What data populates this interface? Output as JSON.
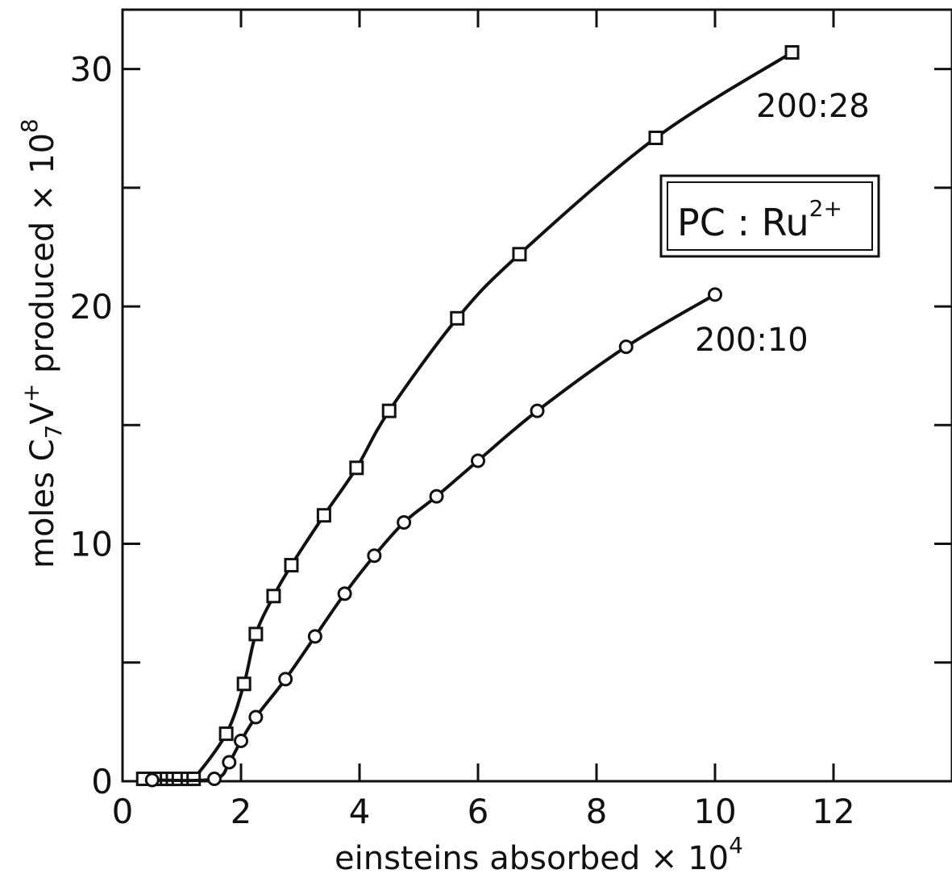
{
  "chart_data": {
    "type": "line",
    "xlabel": {
      "text": "einsteins absorbed × 10",
      "sup": "4"
    },
    "ylabel": {
      "pre": "moles C",
      "sub": "7",
      "mid": "V",
      "sup1": "+",
      "post": " produced × 10",
      "sup2": "8"
    },
    "xlim": [
      0,
      14
    ],
    "ylim": [
      0,
      32.5
    ],
    "x_ticks": [
      0,
      2,
      4,
      6,
      8,
      10,
      12
    ],
    "x_tick_labels": [
      "0",
      "2",
      "4",
      "6",
      "8",
      "10",
      "12"
    ],
    "y_ticks": [
      0,
      10,
      20,
      30
    ],
    "y_tick_labels": [
      "0",
      "10",
      "20",
      "30"
    ],
    "y_minor_ticks": [
      5,
      15,
      25
    ],
    "x_top_ticks": [
      2,
      4,
      6,
      8,
      10,
      12
    ],
    "grid": false,
    "legend": {
      "text": "PC : Ru",
      "sup": "2+"
    },
    "colors": {
      "line": "#111111",
      "background": "#ffffff"
    },
    "series": [
      {
        "name": "200:28",
        "marker": "square",
        "x": [
          0.35,
          0.55,
          0.65,
          0.75,
          0.85,
          0.95,
          1.1,
          1.2,
          1.75,
          2.05,
          2.25,
          2.55,
          2.85,
          3.4,
          3.95,
          4.5,
          5.65,
          6.7,
          9.0,
          11.3
        ],
        "y": [
          0.1,
          0.1,
          0.1,
          0.1,
          0.1,
          0.1,
          0.1,
          0.1,
          2.0,
          4.1,
          6.2,
          7.8,
          9.1,
          11.2,
          13.2,
          15.6,
          19.5,
          22.2,
          27.1,
          30.7
        ]
      },
      {
        "name": "200:10",
        "marker": "circle",
        "x": [
          0.5,
          1.55,
          1.8,
          2.0,
          2.25,
          2.75,
          3.25,
          3.75,
          4.25,
          4.75,
          5.3,
          6.0,
          7.0,
          8.5,
          10.0
        ],
        "y": [
          0.05,
          0.1,
          0.8,
          1.7,
          2.7,
          4.3,
          6.1,
          7.9,
          9.5,
          10.9,
          12.0,
          13.5,
          15.6,
          18.3,
          20.5
        ]
      }
    ]
  }
}
